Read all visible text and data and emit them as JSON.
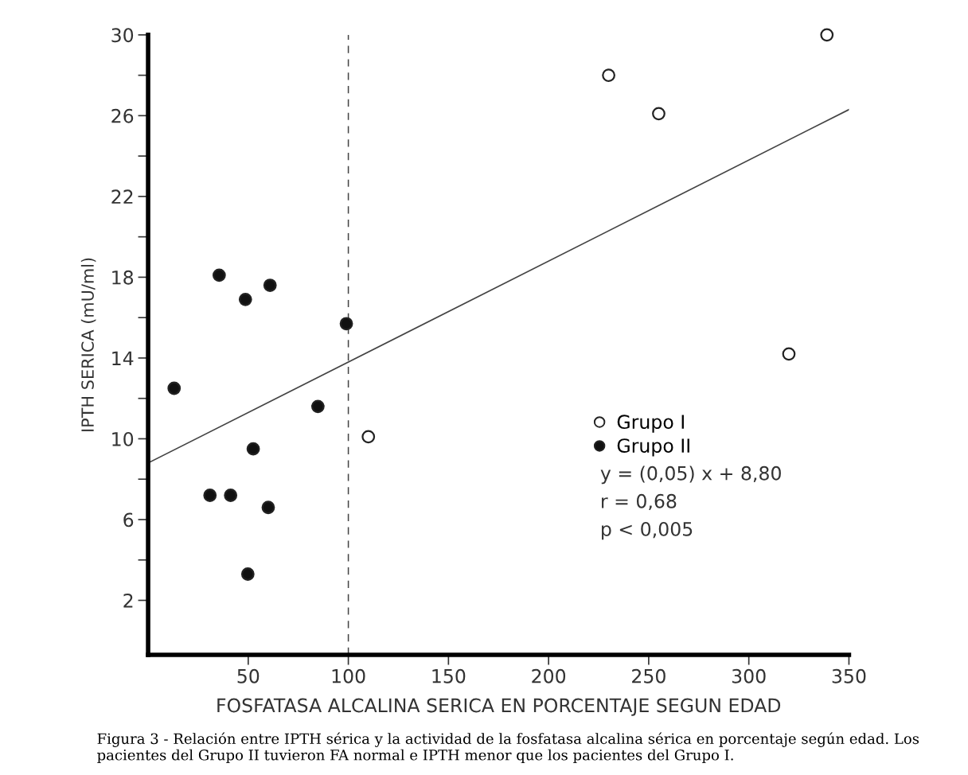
{
  "chart_data": {
    "type": "scatter",
    "xlabel": "FOSFATASA ALCALINA SERICA EN PORCENTAJE SEGUN EDAD",
    "ylabel": "IPTH SERICA (mU/ml)",
    "xlim": [
      0,
      350
    ],
    "ylim": [
      -0.7,
      30
    ],
    "xticks": [
      50,
      100,
      150,
      200,
      250,
      300,
      350
    ],
    "yticks": [
      2,
      {
        "value": 4,
        "label": null
      },
      6,
      {
        "value": 8,
        "label": null
      },
      10,
      {
        "value": 12,
        "label": null
      },
      14,
      {
        "value": 16,
        "label": null
      },
      18,
      {
        "value": 20,
        "label": null
      },
      22,
      {
        "value": 24,
        "label": null
      },
      26,
      {
        "value": 28,
        "label": null
      },
      30
    ],
    "grid": false,
    "legend": "right",
    "marker": "circle",
    "series": [
      {
        "name": "Grupo I",
        "color": "#ffffff",
        "x": [
          110,
          230,
          255,
          339,
          320
        ],
        "values": [
          10.1,
          28.0,
          26.1,
          30.0,
          14.2
        ]
      },
      {
        "name": "Grupo II",
        "color": "#111111",
        "x": [
          13,
          35.5,
          48.6,
          60.9,
          99,
          84.8,
          52.5,
          30.9,
          41.2,
          60,
          49.8
        ],
        "values": [
          12.5,
          18.1,
          16.9,
          17.6,
          15.7,
          11.6,
          9.5,
          7.2,
          7.2,
          6.6,
          3.3
        ]
      },
      {
        "type": "line",
        "color": "#444444",
        "line_style": "solid",
        "marker": "none",
        "x": [
          0,
          350
        ],
        "values": [
          8.8,
          26.3
        ]
      }
    ],
    "ref_lines": [
      {
        "axis": "x",
        "value": 100,
        "color": "#444444",
        "line_style": "dashed"
      }
    ],
    "annotations": [
      "y = (0,05) x + 8,80",
      "r = 0,68",
      "p < 0,005",
      "Figura 3 - Relación entre IPTH sérica y la actividad de la fosfatasa alcalina sérica en porcentaje según edad. Los pacientes del Grupo II tuvieron FA normal e IPTH menor que los pacientes del Grupo I."
    ]
  }
}
